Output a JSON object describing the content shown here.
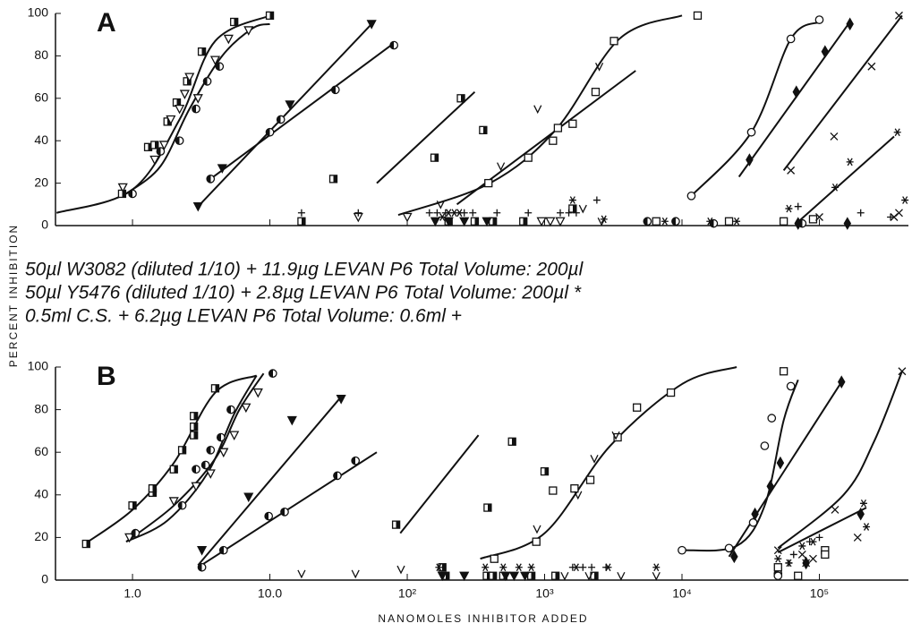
{
  "chart_data": [
    {
      "type": "scatter",
      "title": "A",
      "ylabel": "PERCENT INHIBITION",
      "notes": [
        "50µl W3082 (diluted 1/10) + 11.9µg LEVAN P6   Total Volume: 200µl",
        "50µl Y5476 (diluted 1/10) + 2.8µg LEVAN P6   Total Volume: 200µl *",
        "0.5ml C.S. + 6.2µg LEVAN P6   Total Volume: 0.6ml +"
      ],
      "xscale": "log",
      "xlim": [
        0.275,
        445000
      ],
      "ylim": [
        0,
        100
      ],
      "yticks": [
        0,
        20,
        40,
        60,
        80,
        100
      ],
      "series": [
        {
          "marker": "sqhalf",
          "color": "#111",
          "x": [
            0.84,
            1.3,
            1.45,
            1.8,
            2.1,
            2.5,
            3.2,
            5.5,
            10,
            17,
            29,
            158,
            246,
            357,
            200,
            310,
            420,
            700,
            1600
          ],
          "values": [
            15,
            37,
            38,
            49,
            58,
            68,
            82,
            96,
            99,
            2,
            22,
            32,
            60,
            45,
            2,
            2,
            2,
            2,
            8
          ]
        },
        {
          "marker": "tri-open",
          "color": "#111",
          "x": [
            0.85,
            1.45,
            1.7,
            1.9,
            2.2,
            2.4,
            2.6,
            3.0,
            4,
            5,
            7,
            44,
            100,
            950,
            1100,
            1300
          ],
          "values": [
            18,
            31,
            38,
            50,
            55,
            62,
            70,
            60,
            78,
            88,
            92,
            4,
            4,
            2,
            2,
            2
          ]
        },
        {
          "marker": "circhalf",
          "color": "#111",
          "x": [
            1.0,
            1.6,
            2.2,
            2.9,
            3.5,
            4.3,
            3.7,
            10,
            12,
            30,
            80,
            5600,
            9000,
            17000,
            75000
          ],
          "values": [
            15,
            35,
            40,
            55,
            68,
            75,
            22,
            44,
            50,
            64,
            85,
            2,
            2,
            1,
            1
          ]
        },
        {
          "marker": "tri-filled",
          "color": "#111",
          "x": [
            3.0,
            4.5,
            14,
            55,
            160,
            200,
            260,
            380
          ],
          "values": [
            9,
            27,
            57,
            95,
            2,
            2,
            2,
            2
          ]
        },
        {
          "marker": "sq-open",
          "color": "#111",
          "x": [
            390,
            760,
            1150,
            1250,
            1600,
            2350,
            3200,
            13000,
            6500,
            22000,
            55000,
            90000
          ],
          "values": [
            20,
            32,
            40,
            46,
            48,
            63,
            87,
            99,
            2,
            2,
            2,
            3
          ]
        },
        {
          "marker": "v",
          "color": "#111",
          "x": [
            175,
            480,
            890,
            2500,
            1900,
            2600
          ],
          "values": [
            10,
            28,
            55,
            75,
            8,
            2
          ]
        },
        {
          "marker": "circ-open",
          "color": "#111",
          "x": [
            11700,
            32000,
            62000,
            100000
          ],
          "values": [
            14,
            44,
            88,
            97
          ]
        },
        {
          "marker": "diamond",
          "color": "#111",
          "x": [
            31000,
            68000,
            110000,
            167000,
            70000,
            160000
          ],
          "values": [
            31,
            63,
            82,
            95,
            1,
            1
          ]
        },
        {
          "marker": "x",
          "color": "#111",
          "x": [
            62000,
            128000,
            240000,
            380000,
            100000,
            350000,
            380000
          ],
          "values": [
            26,
            42,
            75,
            99,
            4,
            4,
            6
          ]
        },
        {
          "marker": "star",
          "color": "#111",
          "x": [
            180,
            200,
            220,
            240,
            1600,
            2700,
            7500,
            16000,
            25000,
            60000,
            130000,
            167000,
            370000,
            420000
          ],
          "values": [
            4,
            6,
            6,
            6,
            12,
            3,
            2,
            2,
            2,
            8,
            18,
            30,
            44,
            12
          ]
        },
        {
          "marker": "plus",
          "color": "#111",
          "x": [
            17,
            44,
            145,
            165,
            190,
            260,
            300,
            450,
            760,
            1300,
            1500,
            1700,
            2400,
            70000,
            200000,
            330000
          ],
          "values": [
            6,
            6,
            6,
            6,
            6,
            6,
            6,
            6,
            6,
            6,
            6,
            6,
            12,
            9,
            6,
            4
          ]
        }
      ],
      "fits": [
        {
          "x": [
            0.28,
            1,
            2.2,
            4,
            10
          ],
          "values": [
            6,
            17,
            50,
            87,
            99
          ]
        },
        {
          "x": [
            0.9,
            1.6,
            2.6,
            4.5,
            7.5,
            10
          ],
          "values": [
            15,
            28,
            55,
            80,
            93,
            95
          ]
        },
        {
          "x": [
            3.7,
            80
          ],
          "values": [
            22,
            86
          ]
        },
        {
          "x": [
            3,
            55
          ],
          "values": [
            9,
            95
          ]
        },
        {
          "x": [
            60,
            310
          ],
          "values": [
            20,
            63
          ]
        },
        {
          "x": [
            230,
            4600
          ],
          "values": [
            10,
            73
          ]
        },
        {
          "x": [
            86,
            400,
            1200,
            3500,
            10000
          ],
          "values": [
            5,
            20,
            45,
            88,
            99
          ]
        },
        {
          "x": [
            11700,
            32000,
            62000,
            100000
          ],
          "values": [
            14,
            44,
            88,
            96
          ]
        },
        {
          "x": [
            26000,
            167000
          ],
          "values": [
            23,
            96
          ]
        },
        {
          "x": [
            55000,
            400000
          ],
          "values": [
            26,
            99
          ]
        },
        {
          "x": [
            68000,
            350000
          ],
          "values": [
            1,
            42
          ]
        }
      ]
    },
    {
      "type": "scatter",
      "title": "B",
      "xlabel": "NANOMOLES INHIBITOR ADDED",
      "xscale": "log",
      "xlim": [
        0.275,
        445000
      ],
      "ylim": [
        0,
        100
      ],
      "yticks": [
        0,
        20,
        40,
        60,
        80,
        100
      ],
      "xticks": [
        {
          "value": 1,
          "label": "1.0"
        },
        {
          "value": 10,
          "label": "10.0"
        },
        {
          "value": 100,
          "label": "10²"
        },
        {
          "value": 1000,
          "label": "10³"
        },
        {
          "value": 10000,
          "label": "10⁴"
        },
        {
          "value": 100000,
          "label": "10⁵"
        }
      ],
      "series": [
        {
          "marker": "sqhalf",
          "color": "#111",
          "x": [
            0.46,
            1.0,
            1.4,
            1.4,
            2.0,
            2.3,
            2.8,
            2.8,
            2.8,
            4.0,
            83,
            385,
            580,
            1000,
            180,
            190,
            380,
            420,
            500,
            800,
            1200,
            2300
          ],
          "values": [
            17,
            35,
            41,
            43,
            52,
            61,
            68,
            72,
            77,
            90,
            26,
            34,
            65,
            51,
            6,
            2,
            2,
            2,
            2,
            2,
            2,
            2
          ]
        },
        {
          "marker": "tri-open",
          "color": "#111",
          "x": [
            0.95,
            2.0,
            2.9,
            3.7,
            4.6,
            5.5,
            6.7,
            8.2
          ],
          "values": [
            20,
            37,
            44,
            50,
            60,
            68,
            81,
            88
          ]
        },
        {
          "marker": "circhalf",
          "color": "#111",
          "x": [
            1.05,
            2.3,
            2.9,
            3.4,
            3.7,
            4.4,
            5.2,
            10.5,
            3.2,
            4.6,
            9.8,
            12.8,
            31,
            42,
            50000
          ],
          "values": [
            22,
            35,
            52,
            54,
            61,
            67,
            80,
            97,
            6,
            14,
            30,
            32,
            49,
            56,
            3
          ]
        },
        {
          "marker": "tri-filled",
          "color": "#111",
          "x": [
            3.2,
            7,
            14.5,
            33,
            180,
            260,
            520,
            600,
            720
          ],
          "values": [
            14,
            39,
            75,
            85,
            2,
            2,
            2,
            2,
            2
          ]
        },
        {
          "marker": "sq-open",
          "color": "#111",
          "x": [
            430,
            870,
            1150,
            1650,
            2150,
            3400,
            4700,
            8300,
            55000,
            110000,
            50000,
            70000,
            110000
          ],
          "values": [
            10,
            18,
            42,
            43,
            47,
            67,
            81,
            88,
            98,
            14,
            6,
            2,
            12
          ]
        },
        {
          "marker": "v",
          "color": "#111",
          "x": [
            17,
            42,
            90,
            880,
            1750,
            2300,
            3300,
            1400,
            2100,
            3600,
            6500
          ],
          "values": [
            3,
            3,
            5,
            24,
            40,
            57,
            68,
            2,
            2,
            2,
            2
          ]
        },
        {
          "marker": "circ-open",
          "color": "#111",
          "x": [
            10000,
            22000,
            33000,
            40000,
            45000,
            62000,
            50000
          ],
          "values": [
            14,
            15,
            27,
            63,
            76,
            91,
            2
          ]
        },
        {
          "marker": "diamond",
          "color": "#111",
          "x": [
            24000,
            34000,
            44000,
            52000,
            145000,
            80000,
            200000
          ],
          "values": [
            11,
            31,
            44,
            55,
            93,
            8,
            31
          ]
        },
        {
          "marker": "x",
          "color": "#111",
          "x": [
            50000,
            75000,
            80000,
            90000,
            130000,
            190000,
            400000
          ],
          "values": [
            14,
            12,
            8,
            10,
            33,
            20,
            98
          ]
        },
        {
          "marker": "star",
          "color": "#111",
          "x": [
            170,
            370,
            500,
            650,
            800,
            1700,
            2900,
            6500,
            50000,
            60000,
            75000,
            90000,
            220000,
            210000
          ],
          "values": [
            6,
            6,
            6,
            6,
            6,
            6,
            6,
            6,
            10,
            8,
            16,
            18,
            25,
            36
          ]
        },
        {
          "marker": "plus",
          "color": "#111",
          "x": [
            1600,
            1900,
            2200,
            2800,
            60000,
            65000,
            85000,
            100000
          ],
          "values": [
            6,
            6,
            6,
            6,
            8,
            12,
            18,
            20
          ]
        }
      ],
      "fits": [
        {
          "x": [
            0.45,
            1,
            2,
            4,
            8
          ],
          "values": [
            17,
            33,
            55,
            88,
            96
          ]
        },
        {
          "x": [
            0.9,
            2,
            4,
            6,
            9
          ],
          "values": [
            18,
            35,
            57,
            80,
            97
          ]
        },
        {
          "x": [
            0.9,
            1.8,
            3.5,
            5.5,
            8
          ],
          "values": [
            18,
            28,
            50,
            78,
            96
          ]
        },
        {
          "x": [
            3,
            33
          ],
          "values": [
            7,
            86
          ]
        },
        {
          "x": [
            3,
            60
          ],
          "values": [
            6,
            60
          ]
        },
        {
          "x": [
            89,
            330
          ],
          "values": [
            22,
            68
          ]
        },
        {
          "x": [
            340,
            1000,
            3000,
            10000,
            25000
          ],
          "values": [
            10,
            22,
            63,
            92,
            100
          ]
        },
        {
          "x": [
            10000,
            25000,
            40000,
            55000,
            70000
          ],
          "values": [
            14,
            16,
            35,
            75,
            94
          ]
        },
        {
          "x": [
            22000,
            145000
          ],
          "values": [
            11,
            93
          ]
        },
        {
          "x": [
            50000,
            150000,
            250000,
            400000
          ],
          "values": [
            15,
            40,
            65,
            98
          ]
        },
        {
          "x": [
            50000,
            220000
          ],
          "values": [
            13,
            34
          ]
        }
      ]
    }
  ]
}
